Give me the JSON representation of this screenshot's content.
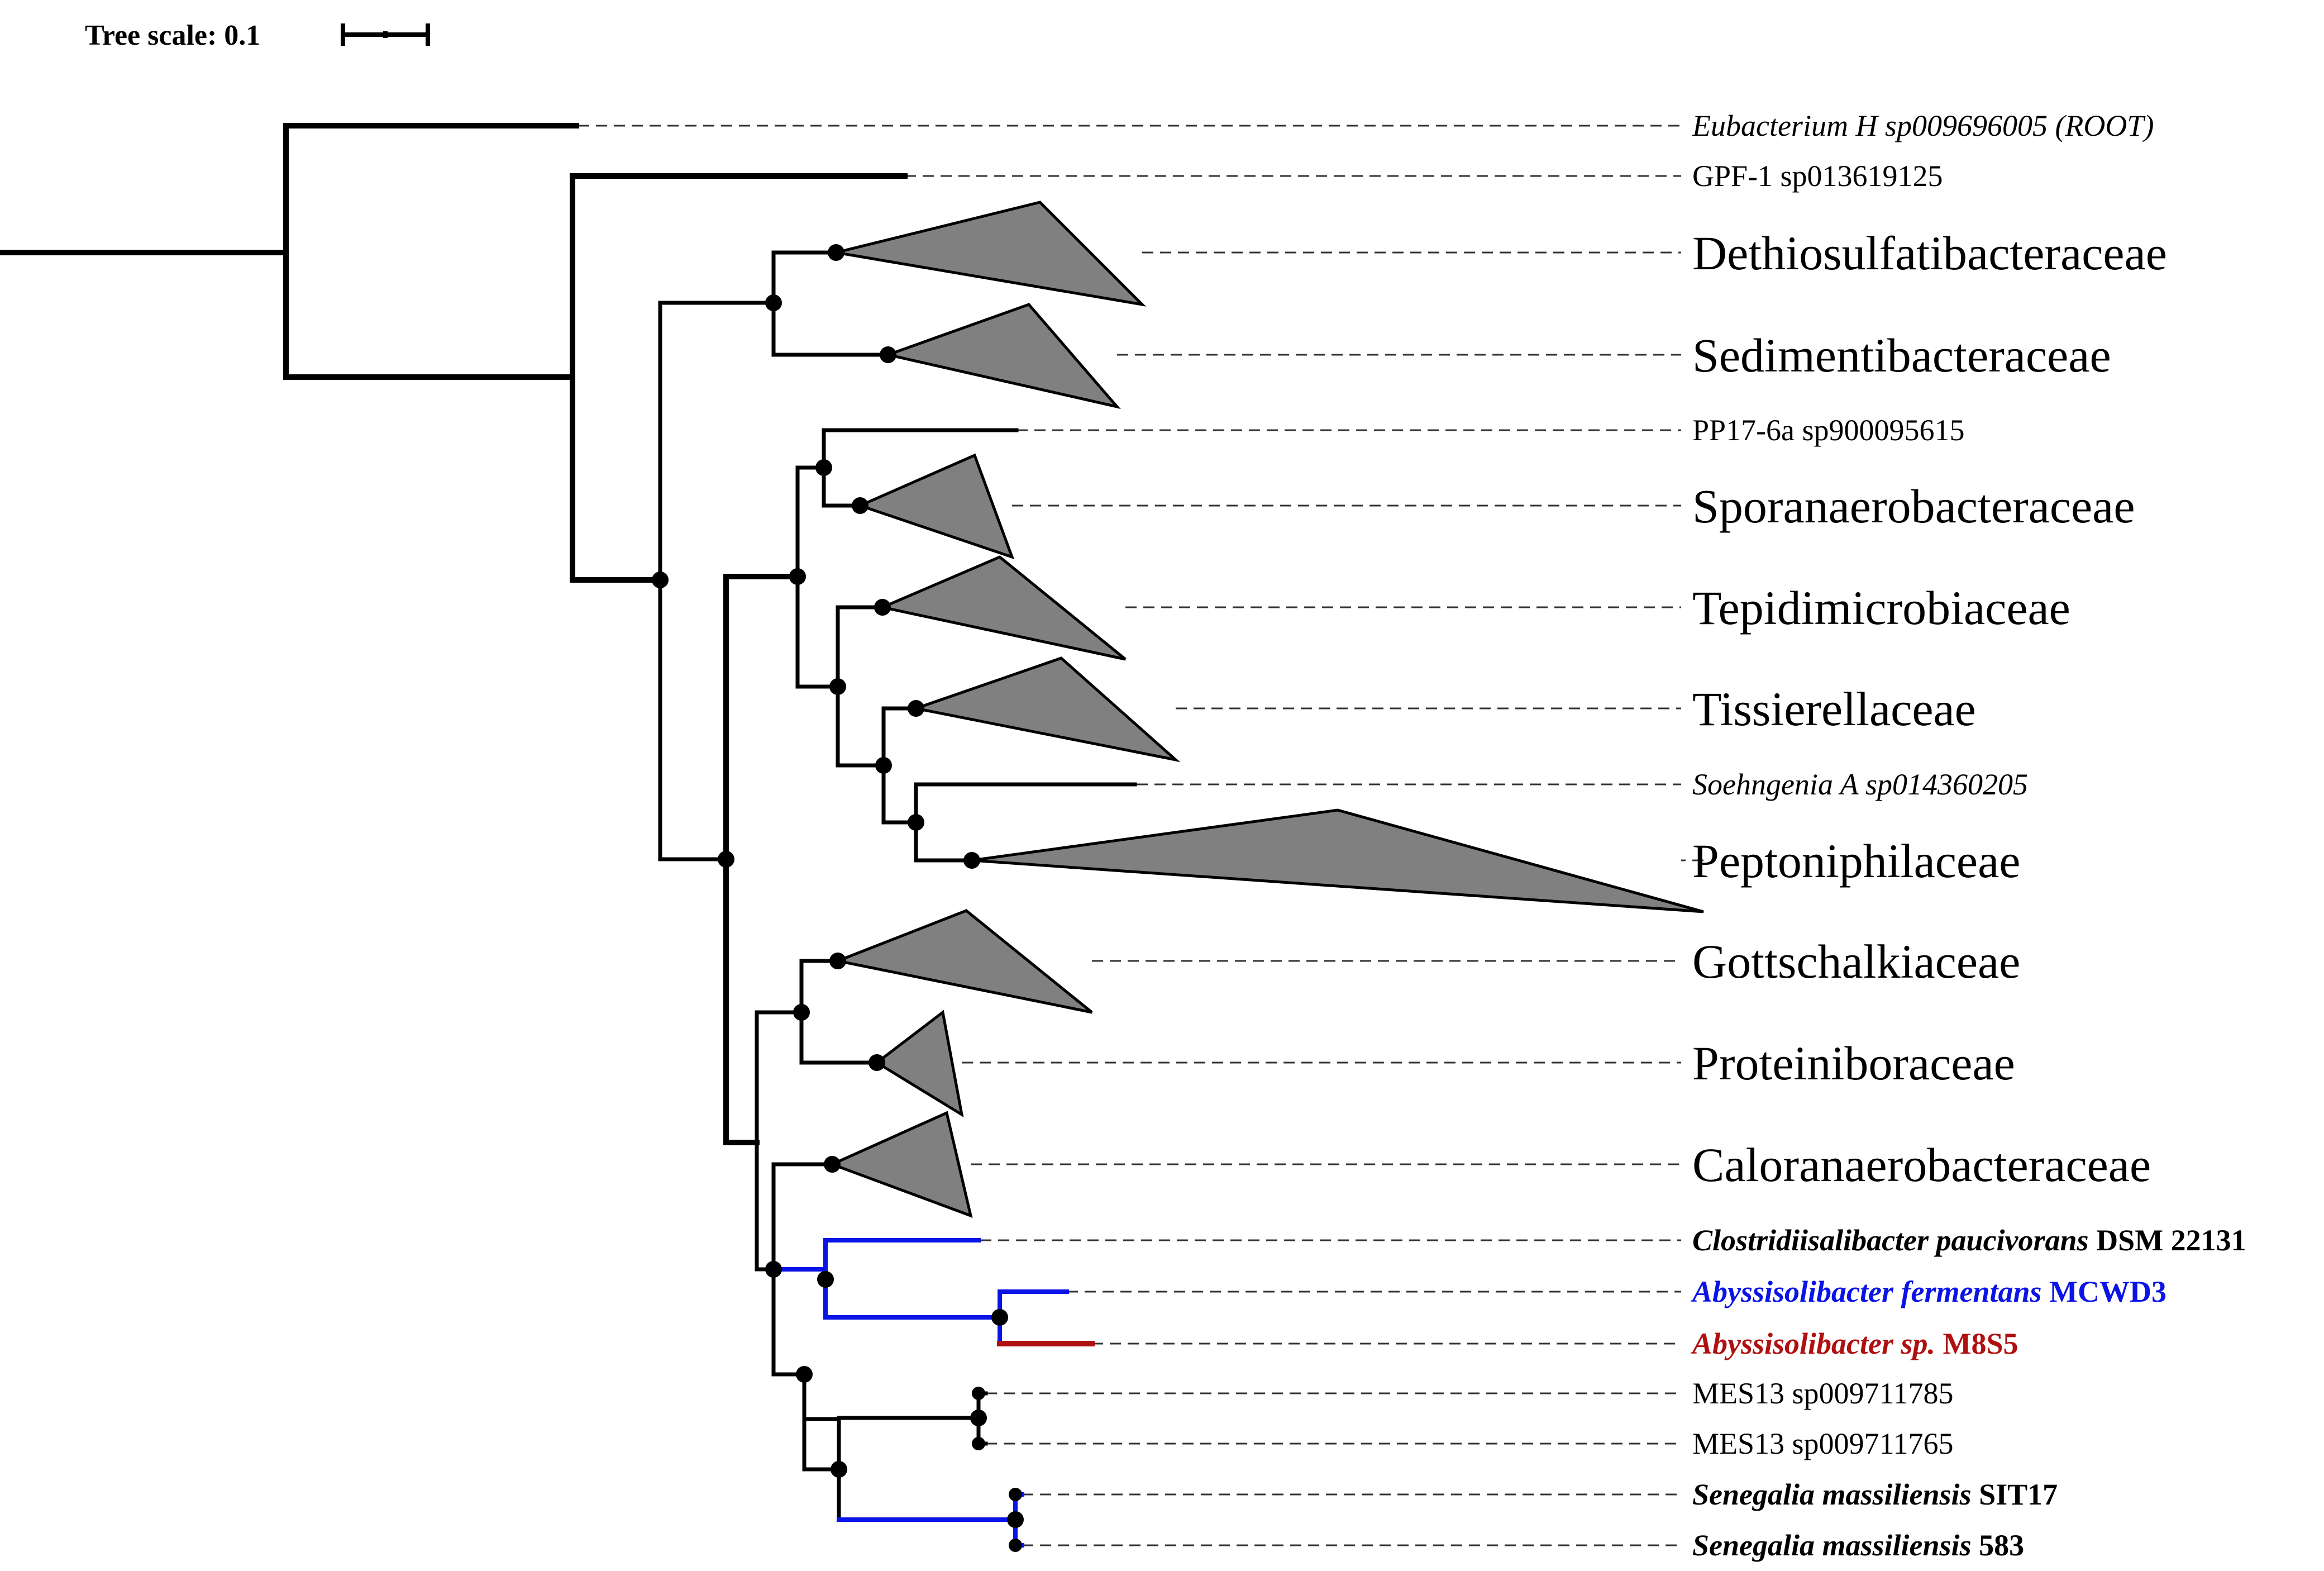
{
  "scale": {
    "label": "Tree scale: 0.1"
  },
  "colors": {
    "default": "#000000",
    "blue": "#0a14e6",
    "red": "#b01010",
    "clade_fill": "#808080"
  },
  "leaves": [
    {
      "id": "root",
      "species": "Eubacterium H sp009696005 (ROOT)",
      "strain": "",
      "style": "italic",
      "color": "default"
    },
    {
      "id": "gpf1",
      "species": "GPF-1 sp013619125",
      "strain": "",
      "style": "normal",
      "color": "default"
    },
    {
      "id": "dethio",
      "species": "Dethiosulfatibacteraceae",
      "strain": "",
      "style": "family",
      "color": "default"
    },
    {
      "id": "sedim",
      "species": "Sedimentibacteraceae",
      "strain": "",
      "style": "family",
      "color": "default"
    },
    {
      "id": "pp17",
      "species": "PP17-6a sp900095615",
      "strain": "",
      "style": "normal",
      "color": "default"
    },
    {
      "id": "sporan",
      "species": "Sporanaerobacteraceae",
      "strain": "",
      "style": "family",
      "color": "default"
    },
    {
      "id": "tepid",
      "species": "Tepidimicrobiaceae",
      "strain": "",
      "style": "family",
      "color": "default"
    },
    {
      "id": "tissier",
      "species": "Tissierellaceae",
      "strain": "",
      "style": "family",
      "color": "default"
    },
    {
      "id": "soehn",
      "species": "Soehngenia A sp014360205",
      "strain": "",
      "style": "italic",
      "color": "default"
    },
    {
      "id": "pepto",
      "species": "Peptoniphilaceae",
      "strain": "",
      "style": "family",
      "color": "default"
    },
    {
      "id": "gotts",
      "species": "Gottschalkiaceae",
      "strain": "",
      "style": "family",
      "color": "default"
    },
    {
      "id": "protein",
      "species": "Proteiniboraceae",
      "strain": "",
      "style": "family",
      "color": "default"
    },
    {
      "id": "calor",
      "species": "Caloranaerobacteraceae",
      "strain": "",
      "style": "family",
      "color": "default"
    },
    {
      "id": "clostr",
      "species": "Clostridiisalibacter paucivorans",
      "strain": "DSM 22131",
      "style": "bold-italic",
      "color": "default"
    },
    {
      "id": "abyss_f",
      "species": "Abyssisolibacter fermentans",
      "strain": "MCWD3",
      "style": "bold-italic",
      "color": "blue"
    },
    {
      "id": "abyss_sp",
      "species": "Abyssisolibacter sp.",
      "strain": "M8S5",
      "style": "bold-italic",
      "color": "red"
    },
    {
      "id": "mes13a",
      "species": "MES13 sp009711785",
      "strain": "",
      "style": "normal",
      "color": "default"
    },
    {
      "id": "mes13b",
      "species": "MES13 sp009711765",
      "strain": "",
      "style": "normal",
      "color": "default"
    },
    {
      "id": "seneg1",
      "species": "Senegalia massiliensis",
      "strain": "SIT17",
      "style": "bold-italic",
      "color": "default"
    },
    {
      "id": "seneg2",
      "species": "Senegalia massiliensis",
      "strain": "583",
      "style": "bold-italic",
      "color": "default"
    }
  ]
}
